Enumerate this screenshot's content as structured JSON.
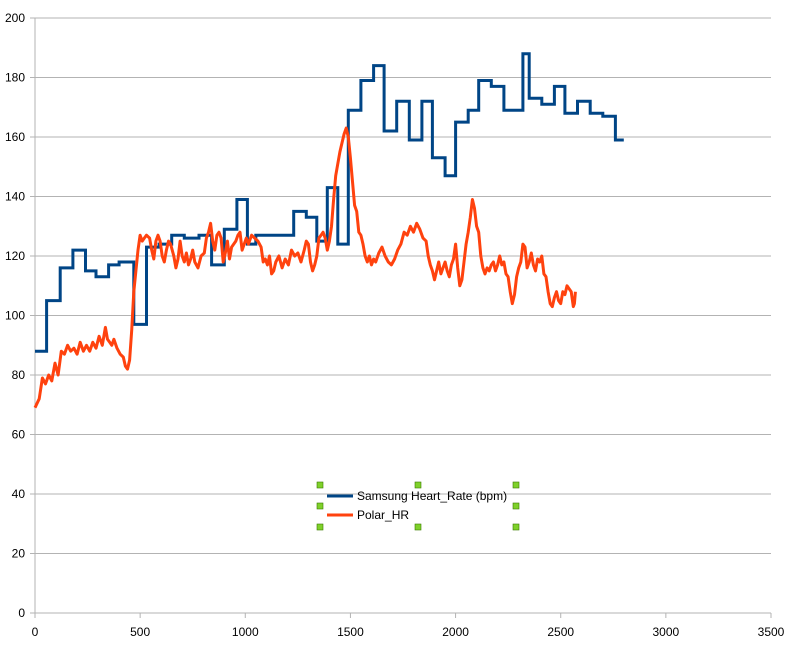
{
  "chart_data": {
    "type": "line",
    "title": "",
    "xlabel": "",
    "ylabel": "",
    "xlim": [
      0,
      3500
    ],
    "ylim": [
      0,
      200
    ],
    "x_ticks": [
      0,
      500,
      1000,
      1500,
      2000,
      2500,
      3000,
      3500
    ],
    "y_ticks": [
      0,
      20,
      40,
      60,
      80,
      100,
      120,
      140,
      160,
      180,
      200
    ],
    "grid": "horizontal",
    "legend_position": "bottom-center",
    "series": [
      {
        "name": "Samsung Heart_Rate (bpm)",
        "color": "#004586",
        "style": "step",
        "points": [
          [
            0,
            88
          ],
          [
            55,
            88
          ],
          [
            55,
            105
          ],
          [
            120,
            105
          ],
          [
            120,
            116
          ],
          [
            180,
            116
          ],
          [
            180,
            122
          ],
          [
            240,
            122
          ],
          [
            240,
            115
          ],
          [
            290,
            115
          ],
          [
            290,
            113
          ],
          [
            350,
            113
          ],
          [
            350,
            117
          ],
          [
            400,
            117
          ],
          [
            400,
            118
          ],
          [
            470,
            118
          ],
          [
            470,
            97
          ],
          [
            530,
            97
          ],
          [
            530,
            123
          ],
          [
            590,
            123
          ],
          [
            590,
            124
          ],
          [
            650,
            124
          ],
          [
            650,
            127
          ],
          [
            710,
            127
          ],
          [
            710,
            126
          ],
          [
            780,
            126
          ],
          [
            780,
            127
          ],
          [
            840,
            127
          ],
          [
            840,
            117
          ],
          [
            900,
            117
          ],
          [
            900,
            129
          ],
          [
            960,
            129
          ],
          [
            960,
            139
          ],
          [
            1010,
            139
          ],
          [
            1010,
            124
          ],
          [
            1050,
            124
          ],
          [
            1050,
            127
          ],
          [
            1230,
            127
          ],
          [
            1230,
            135
          ],
          [
            1290,
            135
          ],
          [
            1290,
            133
          ],
          [
            1340,
            133
          ],
          [
            1340,
            125
          ],
          [
            1390,
            125
          ],
          [
            1390,
            143
          ],
          [
            1440,
            143
          ],
          [
            1440,
            124
          ],
          [
            1490,
            124
          ],
          [
            1490,
            169
          ],
          [
            1550,
            169
          ],
          [
            1550,
            179
          ],
          [
            1610,
            179
          ],
          [
            1610,
            184
          ],
          [
            1660,
            184
          ],
          [
            1660,
            162
          ],
          [
            1720,
            162
          ],
          [
            1720,
            172
          ],
          [
            1780,
            172
          ],
          [
            1780,
            159
          ],
          [
            1840,
            159
          ],
          [
            1840,
            172
          ],
          [
            1890,
            172
          ],
          [
            1890,
            153
          ],
          [
            1950,
            153
          ],
          [
            1950,
            147
          ],
          [
            2000,
            147
          ],
          [
            2000,
            165
          ],
          [
            2060,
            165
          ],
          [
            2060,
            169
          ],
          [
            2110,
            169
          ],
          [
            2110,
            179
          ],
          [
            2170,
            179
          ],
          [
            2170,
            177
          ],
          [
            2230,
            177
          ],
          [
            2230,
            169
          ],
          [
            2320,
            169
          ],
          [
            2320,
            188
          ],
          [
            2350,
            188
          ],
          [
            2350,
            173
          ],
          [
            2410,
            173
          ],
          [
            2410,
            171
          ],
          [
            2470,
            171
          ],
          [
            2470,
            177
          ],
          [
            2520,
            177
          ],
          [
            2520,
            168
          ],
          [
            2580,
            168
          ],
          [
            2580,
            172
          ],
          [
            2640,
            172
          ],
          [
            2640,
            168
          ],
          [
            2700,
            168
          ],
          [
            2700,
            167
          ],
          [
            2760,
            167
          ],
          [
            2760,
            159
          ],
          [
            2800,
            159
          ]
        ]
      },
      {
        "name": "Polar_HR",
        "color": "#ff420e",
        "style": "line",
        "points": [
          [
            0,
            69
          ],
          [
            20,
            72
          ],
          [
            35,
            79
          ],
          [
            50,
            77
          ],
          [
            65,
            80
          ],
          [
            80,
            78
          ],
          [
            95,
            84
          ],
          [
            110,
            80
          ],
          [
            125,
            88
          ],
          [
            140,
            87
          ],
          [
            155,
            90
          ],
          [
            170,
            88
          ],
          [
            185,
            89
          ],
          [
            200,
            87
          ],
          [
            215,
            91
          ],
          [
            230,
            88
          ],
          [
            245,
            90
          ],
          [
            260,
            88
          ],
          [
            275,
            91
          ],
          [
            290,
            89
          ],
          [
            305,
            93
          ],
          [
            320,
            90
          ],
          [
            335,
            96
          ],
          [
            345,
            92
          ],
          [
            355,
            91
          ],
          [
            365,
            90
          ],
          [
            375,
            92
          ],
          [
            390,
            89
          ],
          [
            405,
            87
          ],
          [
            420,
            86
          ],
          [
            430,
            83
          ],
          [
            440,
            82
          ],
          [
            450,
            85
          ],
          [
            460,
            95
          ],
          [
            470,
            108
          ],
          [
            480,
            115
          ],
          [
            490,
            122
          ],
          [
            500,
            127
          ],
          [
            510,
            125
          ],
          [
            520,
            126
          ],
          [
            530,
            127
          ],
          [
            545,
            126
          ],
          [
            555,
            122
          ],
          [
            565,
            119
          ],
          [
            575,
            125
          ],
          [
            585,
            127
          ],
          [
            595,
            125
          ],
          [
            605,
            120
          ],
          [
            615,
            118
          ],
          [
            625,
            122
          ],
          [
            635,
            125
          ],
          [
            645,
            124
          ],
          [
            660,
            120
          ],
          [
            670,
            116
          ],
          [
            680,
            119
          ],
          [
            690,
            125
          ],
          [
            700,
            120
          ],
          [
            710,
            118
          ],
          [
            720,
            121
          ],
          [
            730,
            117
          ],
          [
            740,
            119
          ],
          [
            750,
            122
          ],
          [
            760,
            118
          ],
          [
            775,
            116
          ],
          [
            790,
            120
          ],
          [
            805,
            121
          ],
          [
            815,
            126
          ],
          [
            825,
            128
          ],
          [
            835,
            131
          ],
          [
            845,
            125
          ],
          [
            855,
            122
          ],
          [
            865,
            127
          ],
          [
            875,
            128
          ],
          [
            885,
            126
          ],
          [
            895,
            118
          ],
          [
            905,
            121
          ],
          [
            915,
            125
          ],
          [
            925,
            119
          ],
          [
            935,
            123
          ],
          [
            945,
            124
          ],
          [
            955,
            125
          ],
          [
            965,
            127
          ],
          [
            975,
            128
          ],
          [
            985,
            122
          ],
          [
            995,
            124
          ],
          [
            1005,
            126
          ],
          [
            1015,
            124
          ],
          [
            1030,
            127
          ],
          [
            1045,
            126
          ],
          [
            1060,
            125
          ],
          [
            1075,
            123
          ],
          [
            1085,
            118
          ],
          [
            1095,
            119
          ],
          [
            1105,
            117
          ],
          [
            1115,
            120
          ],
          [
            1125,
            114
          ],
          [
            1135,
            115
          ],
          [
            1145,
            118
          ],
          [
            1160,
            120
          ],
          [
            1175,
            116
          ],
          [
            1190,
            119
          ],
          [
            1205,
            117
          ],
          [
            1220,
            122
          ],
          [
            1235,
            120
          ],
          [
            1250,
            121
          ],
          [
            1265,
            118
          ],
          [
            1280,
            122
          ],
          [
            1290,
            125
          ],
          [
            1300,
            124
          ],
          [
            1310,
            118
          ],
          [
            1320,
            115
          ],
          [
            1330,
            117
          ],
          [
            1340,
            120
          ],
          [
            1350,
            126
          ],
          [
            1360,
            127
          ],
          [
            1370,
            128
          ],
          [
            1380,
            126
          ],
          [
            1390,
            122
          ],
          [
            1400,
            125
          ],
          [
            1410,
            130
          ],
          [
            1420,
            139
          ],
          [
            1430,
            147
          ],
          [
            1440,
            151
          ],
          [
            1450,
            155
          ],
          [
            1460,
            158
          ],
          [
            1470,
            161
          ],
          [
            1480,
            163
          ],
          [
            1490,
            160
          ],
          [
            1500,
            153
          ],
          [
            1510,
            145
          ],
          [
            1520,
            137
          ],
          [
            1530,
            135
          ],
          [
            1540,
            128
          ],
          [
            1550,
            127
          ],
          [
            1560,
            124
          ],
          [
            1570,
            120
          ],
          [
            1580,
            118
          ],
          [
            1590,
            120
          ],
          [
            1600,
            117
          ],
          [
            1610,
            119
          ],
          [
            1620,
            118
          ],
          [
            1635,
            121
          ],
          [
            1650,
            123
          ],
          [
            1665,
            120
          ],
          [
            1680,
            118
          ],
          [
            1695,
            117
          ],
          [
            1710,
            119
          ],
          [
            1725,
            122
          ],
          [
            1740,
            124
          ],
          [
            1755,
            128
          ],
          [
            1770,
            127
          ],
          [
            1785,
            130
          ],
          [
            1800,
            128
          ],
          [
            1815,
            131
          ],
          [
            1830,
            129
          ],
          [
            1845,
            126
          ],
          [
            1860,
            125
          ],
          [
            1870,
            120
          ],
          [
            1880,
            117
          ],
          [
            1890,
            115
          ],
          [
            1900,
            112
          ],
          [
            1910,
            115
          ],
          [
            1920,
            118
          ],
          [
            1930,
            114
          ],
          [
            1940,
            116
          ],
          [
            1950,
            118
          ],
          [
            1960,
            115
          ],
          [
            1970,
            113
          ],
          [
            1980,
            117
          ],
          [
            1990,
            119
          ],
          [
            2000,
            124
          ],
          [
            2010,
            116
          ],
          [
            2020,
            110
          ],
          [
            2030,
            112
          ],
          [
            2040,
            118
          ],
          [
            2050,
            124
          ],
          [
            2060,
            128
          ],
          [
            2070,
            133
          ],
          [
            2080,
            139
          ],
          [
            2090,
            136
          ],
          [
            2100,
            130
          ],
          [
            2110,
            128
          ],
          [
            2120,
            120
          ],
          [
            2130,
            116
          ],
          [
            2140,
            114
          ],
          [
            2150,
            116
          ],
          [
            2160,
            115
          ],
          [
            2170,
            117
          ],
          [
            2180,
            118
          ],
          [
            2190,
            115
          ],
          [
            2200,
            117
          ],
          [
            2210,
            120
          ],
          [
            2220,
            117
          ],
          [
            2230,
            118
          ],
          [
            2240,
            114
          ],
          [
            2250,
            113
          ],
          [
            2260,
            108
          ],
          [
            2270,
            104
          ],
          [
            2280,
            107
          ],
          [
            2290,
            113
          ],
          [
            2300,
            116
          ],
          [
            2310,
            118
          ],
          [
            2320,
            124
          ],
          [
            2330,
            123
          ],
          [
            2340,
            116
          ],
          [
            2350,
            118
          ],
          [
            2360,
            121
          ],
          [
            2370,
            117
          ],
          [
            2380,
            115
          ],
          [
            2390,
            119
          ],
          [
            2400,
            118
          ],
          [
            2410,
            120
          ],
          [
            2420,
            114
          ],
          [
            2430,
            113
          ],
          [
            2440,
            108
          ],
          [
            2450,
            104
          ],
          [
            2460,
            103
          ],
          [
            2470,
            106
          ],
          [
            2480,
            108
          ],
          [
            2490,
            105
          ],
          [
            2500,
            104
          ],
          [
            2510,
            108
          ],
          [
            2520,
            107
          ],
          [
            2530,
            110
          ],
          [
            2540,
            109
          ],
          [
            2550,
            108
          ],
          [
            2560,
            103
          ],
          [
            2565,
            104
          ],
          [
            2570,
            108
          ]
        ]
      }
    ]
  }
}
